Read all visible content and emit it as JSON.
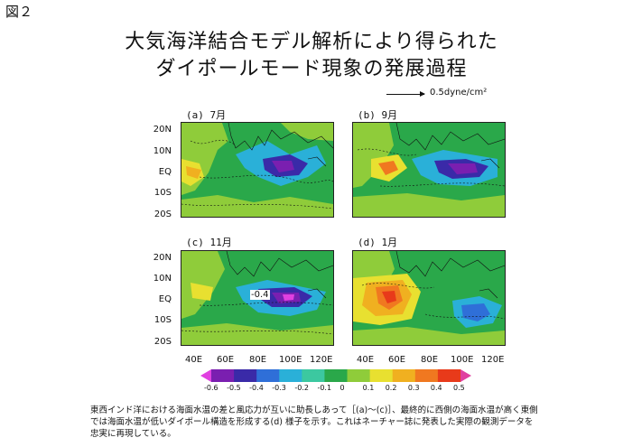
{
  "figure_label": "図２",
  "title": {
    "line1": "大気海洋結合モデル解析により得られた",
    "line2": "ダイポールモード現象の発展過程"
  },
  "vector_key": "0.5dyne/cm²",
  "panels": [
    {
      "label": "(a) 7月"
    },
    {
      "label": "(b) 9月"
    },
    {
      "label": "(c) 11月",
      "annotation": "-0.4"
    },
    {
      "label": "(d) 1月"
    }
  ],
  "y_ticks": [
    "20N",
    "10N",
    "EQ",
    "10S",
    "20S"
  ],
  "x_ticks": [
    "40E",
    "60E",
    "80E",
    "100E",
    "120E"
  ],
  "colorbar": {
    "labels": [
      "-0.6",
      "-0.5",
      "-0.4",
      "-0.3",
      "-0.2",
      "-0.1",
      "0",
      "0.1",
      "0.2",
      "0.3",
      "0.4",
      "0.5"
    ],
    "colors": [
      "#e040e0",
      "#7a1fb0",
      "#3a2aa8",
      "#2f6fd8",
      "#2ab0d8",
      "#3cc8a0",
      "#2aa84a",
      "#8fcc3a",
      "#e8e030",
      "#f0b020",
      "#f07820",
      "#e83a1a",
      "#e040a0"
    ]
  },
  "caption": {
    "line1": "東西インド洋における海面水温の差と風応力が互いに助長しあって［(a)～(c)］、最終的に西側の海面水温が高く東側",
    "line2": "では海面水温が低いダイポール構造を形成する(d) 様子を示す。これはネーチャー誌に発表した実際の観測データを",
    "line3": "忠実に再現している。"
  }
}
